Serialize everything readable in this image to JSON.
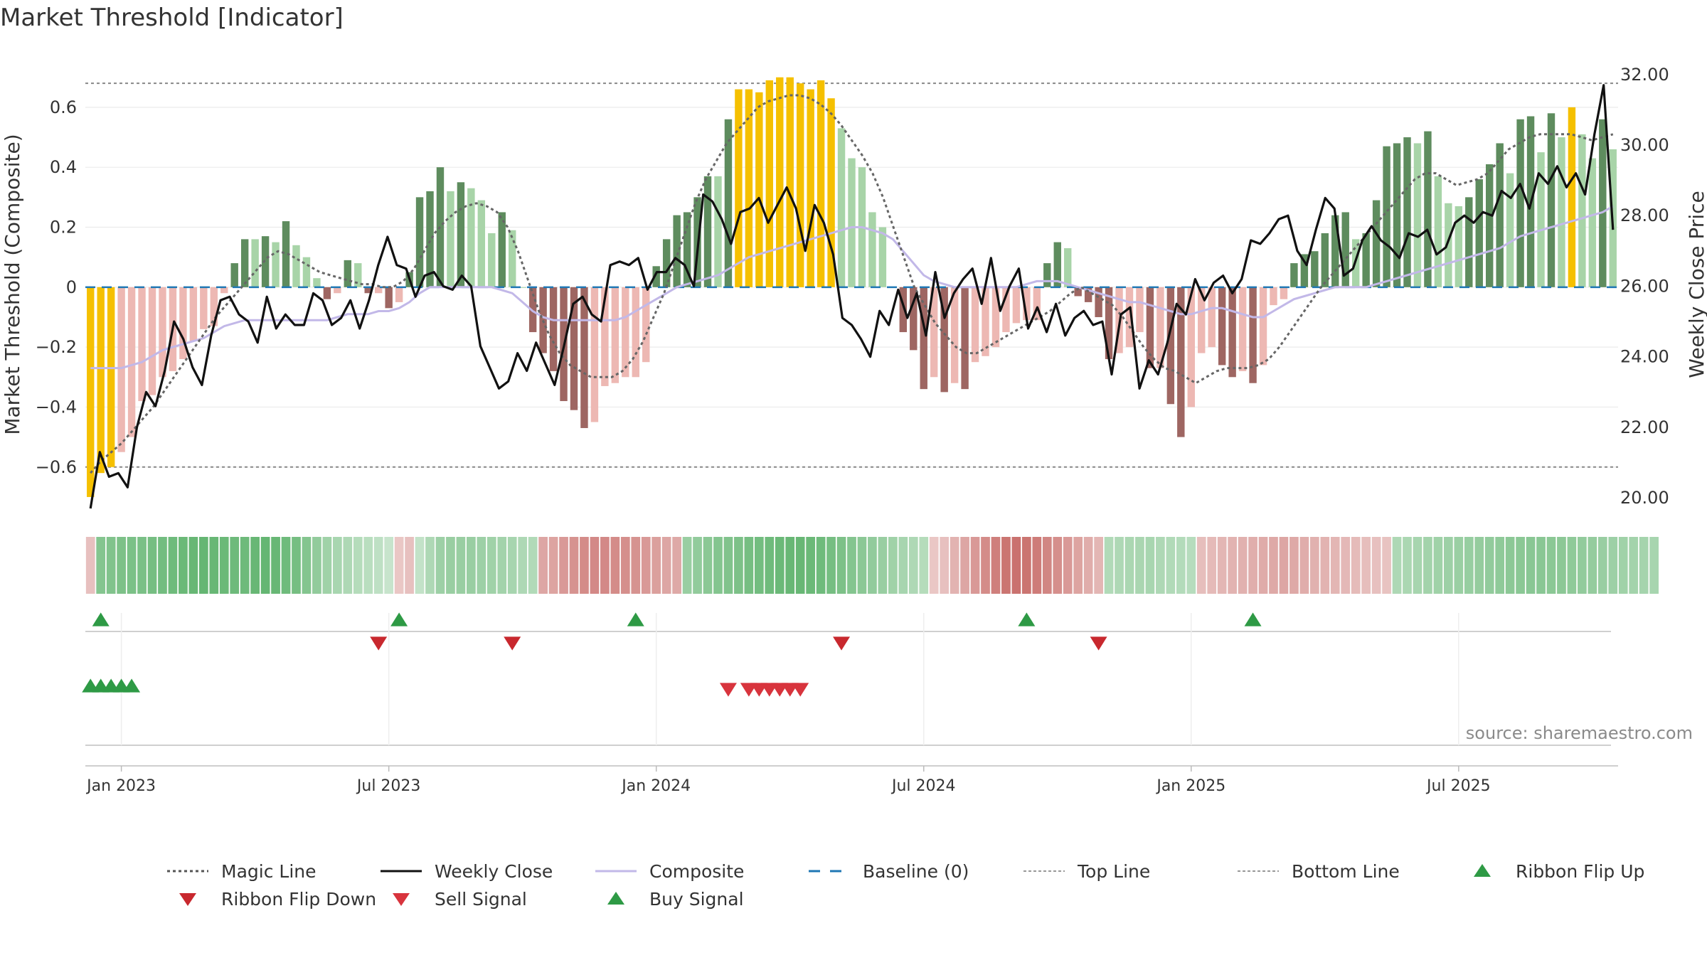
{
  "chart_data": {
    "type": "bar",
    "title": "Market Threshold [Indicator]",
    "ylabel": "Market Threshold (Composite)",
    "y2label": "Weekly Close Price",
    "ylim": [
      -0.75,
      0.78
    ],
    "y2lim": [
      19.6,
      32.6
    ],
    "yticks": [
      {
        "v": 0.6,
        "label": "0.6"
      },
      {
        "v": 0.4,
        "label": "0.4"
      },
      {
        "v": 0.2,
        "label": "0.2"
      },
      {
        "v": 0,
        "label": "0"
      },
      {
        "v": -0.2,
        "label": "−0.2"
      },
      {
        "v": -0.4,
        "label": "−0.4"
      },
      {
        "v": -0.6,
        "label": "−0.6"
      }
    ],
    "y2ticks": [
      {
        "v": 32,
        "label": "32.00"
      },
      {
        "v": 30,
        "label": "30.00"
      },
      {
        "v": 28,
        "label": "28.00"
      },
      {
        "v": 26,
        "label": "26.00"
      },
      {
        "v": 24,
        "label": "24.00"
      },
      {
        "v": 22,
        "label": "22.00"
      },
      {
        "v": 20,
        "label": "20.00"
      }
    ],
    "xticks": [
      {
        "week": 3,
        "label": "Jan 2023"
      },
      {
        "week": 29,
        "label": "Jul 2023"
      },
      {
        "week": 55,
        "label": "Jan 2024"
      },
      {
        "week": 81,
        "label": "Jul 2024"
      },
      {
        "week": 107,
        "label": "Jan 2025"
      },
      {
        "week": 133,
        "label": "Jul 2025"
      }
    ],
    "top_line": 0.68,
    "bottom_line": -0.6,
    "baseline": 0,
    "source_note": "source: sharemaestro.com",
    "colors": {
      "extreme_bar": "#F5C000",
      "strong_up": "#5E8C5E",
      "weak_up": "#A8D4A8",
      "strong_down": "#9E6662",
      "weak_down": "#EDB8B3",
      "magic_line": "#666666",
      "weekly_close": "#111111",
      "composite": "#C2B8E8",
      "baseline": "#1F77B4",
      "threshold_lines": "#888888",
      "buy": "#2E9A45",
      "sell": "#D8343D"
    },
    "series": [
      {
        "name": "Composite Bars",
        "values": [
          -0.7,
          -0.62,
          -0.6,
          -0.55,
          -0.5,
          -0.38,
          -0.36,
          -0.3,
          -0.28,
          -0.24,
          -0.18,
          -0.14,
          -0.13,
          -0.02,
          0.08,
          0.16,
          0.16,
          0.17,
          0.15,
          0.22,
          0.14,
          0.1,
          0.03,
          -0.04,
          -0.02,
          0.09,
          0.08,
          -0.02,
          -0.02,
          -0.07,
          -0.05,
          0.05,
          0.3,
          0.32,
          0.4,
          0.32,
          0.35,
          0.33,
          0.29,
          0.18,
          0.25,
          0.19,
          0.0,
          -0.15,
          -0.22,
          -0.28,
          -0.38,
          -0.41,
          -0.47,
          -0.45,
          -0.33,
          -0.32,
          -0.3,
          -0.3,
          -0.25,
          0.07,
          0.16,
          0.24,
          0.25,
          0.3,
          0.37,
          0.37,
          0.56,
          0.66,
          0.66,
          0.65,
          0.69,
          0.7,
          0.7,
          0.68,
          0.66,
          0.69,
          0.63,
          0.53,
          0.43,
          0.4,
          0.25,
          0.2,
          0.0,
          -0.15,
          -0.21,
          -0.34,
          -0.3,
          -0.35,
          -0.32,
          -0.34,
          -0.25,
          -0.23,
          -0.2,
          -0.15,
          -0.12,
          -0.11,
          -0.11,
          0.08,
          0.15,
          0.13,
          -0.03,
          -0.05,
          -0.1,
          -0.24,
          -0.22,
          -0.2,
          -0.15,
          -0.27,
          -0.27,
          -0.39,
          -0.5,
          -0.4,
          -0.22,
          -0.2,
          -0.26,
          -0.3,
          -0.28,
          -0.32,
          -0.26,
          -0.06,
          -0.04,
          0.08,
          0.11,
          0.12,
          0.18,
          0.24,
          0.25,
          0.16,
          0.18,
          0.29,
          0.47,
          0.48,
          0.5,
          0.48,
          0.52,
          0.37,
          0.28,
          0.27,
          0.3,
          0.36,
          0.41,
          0.48,
          0.38,
          0.56,
          0.57,
          0.45,
          0.58,
          0.5,
          0.6,
          0.51,
          0.43,
          0.56,
          0.46
        ]
      },
      {
        "name": "Weekly Close",
        "values": [
          19.7,
          21.3,
          20.6,
          20.7,
          20.3,
          22.0,
          23.0,
          22.6,
          23.6,
          25.0,
          24.5,
          23.7,
          23.2,
          24.6,
          25.6,
          25.7,
          25.2,
          25.0,
          24.4,
          25.7,
          24.8,
          25.2,
          24.9,
          24.9,
          25.8,
          25.6,
          24.9,
          25.1,
          25.6,
          24.8,
          25.6,
          26.6,
          27.4,
          26.6,
          26.5,
          25.7,
          26.3,
          26.4,
          26.0,
          25.9,
          26.3,
          26.0,
          24.3,
          23.7,
          23.1,
          23.3,
          24.1,
          23.6,
          24.4,
          23.8,
          23.2,
          24.3,
          25.5,
          25.7,
          25.2,
          25.0,
          26.6,
          26.7,
          26.6,
          26.8,
          25.9,
          26.4,
          26.4,
          26.8,
          26.6,
          26.0,
          28.6,
          28.4,
          27.9,
          27.2,
          28.1,
          28.2,
          28.5,
          27.8,
          28.3,
          28.8,
          28.2,
          27.0,
          28.3,
          27.8,
          26.9,
          25.1,
          24.9,
          24.5,
          24.0,
          25.3,
          24.9,
          25.9,
          25.1,
          25.8,
          24.6,
          26.4,
          25.1,
          25.8,
          26.2,
          26.5,
          25.5,
          26.8,
          25.3,
          26.0,
          26.5,
          24.8,
          25.4,
          24.7,
          25.5,
          24.6,
          25.1,
          25.3,
          24.9,
          25.0,
          23.5,
          25.2,
          25.4,
          23.1,
          23.9,
          23.5,
          24.4,
          25.5,
          25.2,
          26.2,
          25.6,
          26.1,
          26.3,
          25.8,
          26.2,
          27.3,
          27.2,
          27.5,
          27.9,
          28.0,
          27.0,
          26.6,
          27.6,
          28.5,
          28.2,
          26.3,
          26.5,
          27.3,
          27.7,
          27.3,
          27.1,
          26.8,
          27.5,
          27.4,
          27.6,
          26.9,
          27.1,
          27.8,
          28.0,
          27.8,
          28.1,
          28.0,
          28.7,
          28.5,
          28.9,
          28.2,
          29.2,
          28.9,
          29.4,
          28.8,
          29.2,
          28.6,
          30.3,
          31.7,
          27.6
        ]
      },
      {
        "name": "Composite Line",
        "values": [
          -0.27,
          -0.27,
          -0.27,
          -0.27,
          -0.26,
          -0.25,
          -0.23,
          -0.21,
          -0.2,
          -0.19,
          -0.18,
          -0.17,
          -0.15,
          -0.13,
          -0.12,
          -0.11,
          -0.11,
          -0.11,
          -0.11,
          -0.11,
          -0.11,
          -0.11,
          -0.11,
          -0.11,
          -0.1,
          -0.09,
          -0.09,
          -0.09,
          -0.08,
          -0.08,
          -0.07,
          -0.05,
          -0.02,
          0.0,
          0.0,
          0.0,
          0.0,
          0.0,
          0.0,
          0.0,
          -0.01,
          -0.02,
          -0.05,
          -0.08,
          -0.1,
          -0.11,
          -0.11,
          -0.11,
          -0.11,
          -0.11,
          -0.11,
          -0.11,
          -0.1,
          -0.08,
          -0.06,
          -0.04,
          -0.02,
          0.0,
          0.01,
          0.02,
          0.03,
          0.04,
          0.06,
          0.08,
          0.1,
          0.11,
          0.12,
          0.13,
          0.14,
          0.15,
          0.16,
          0.17,
          0.18,
          0.19,
          0.2,
          0.2,
          0.19,
          0.18,
          0.16,
          0.12,
          0.08,
          0.04,
          0.02,
          0.01,
          0.0,
          0.0,
          0.0,
          0.0,
          0.0,
          0.0,
          0.0,
          0.01,
          0.02,
          0.02,
          0.02,
          0.01,
          0.0,
          -0.01,
          -0.02,
          -0.03,
          -0.04,
          -0.05,
          -0.05,
          -0.06,
          -0.07,
          -0.08,
          -0.09,
          -0.09,
          -0.08,
          -0.07,
          -0.07,
          -0.08,
          -0.09,
          -0.1,
          -0.1,
          -0.08,
          -0.06,
          -0.04,
          -0.03,
          -0.02,
          -0.01,
          0.0,
          0.0,
          0.0,
          0.0,
          0.01,
          0.02,
          0.03,
          0.04,
          0.05,
          0.06,
          0.07,
          0.08,
          0.09,
          0.1,
          0.11,
          0.12,
          0.13,
          0.15,
          0.17,
          0.18,
          0.19,
          0.2,
          0.21,
          0.22,
          0.23,
          0.24,
          0.25,
          0.27
        ]
      },
      {
        "name": "Magic Line",
        "values": [
          -0.62,
          -0.58,
          -0.55,
          -0.52,
          -0.48,
          -0.44,
          -0.4,
          -0.35,
          -0.3,
          -0.25,
          -0.2,
          -0.15,
          -0.1,
          -0.06,
          -0.02,
          0.02,
          0.06,
          0.1,
          0.12,
          0.11,
          0.09,
          0.07,
          0.05,
          0.04,
          0.03,
          0.02,
          0.01,
          0.01,
          0.0,
          0.0,
          0.02,
          0.06,
          0.12,
          0.18,
          0.22,
          0.25,
          0.27,
          0.28,
          0.27,
          0.25,
          0.2,
          0.12,
          0.02,
          -0.08,
          -0.16,
          -0.22,
          -0.26,
          -0.28,
          -0.3,
          -0.3,
          -0.3,
          -0.28,
          -0.24,
          -0.18,
          -0.1,
          -0.02,
          0.08,
          0.18,
          0.28,
          0.36,
          0.42,
          0.48,
          0.52,
          0.56,
          0.6,
          0.62,
          0.63,
          0.64,
          0.64,
          0.63,
          0.61,
          0.58,
          0.54,
          0.49,
          0.44,
          0.38,
          0.3,
          0.2,
          0.1,
          0.0,
          -0.06,
          -0.12,
          -0.16,
          -0.2,
          -0.22,
          -0.22,
          -0.2,
          -0.18,
          -0.16,
          -0.14,
          -0.12,
          -0.1,
          -0.08,
          -0.05,
          -0.02,
          0.0,
          -0.02,
          -0.04,
          -0.06,
          -0.1,
          -0.15,
          -0.2,
          -0.24,
          -0.27,
          -0.28,
          -0.3,
          -0.32,
          -0.3,
          -0.28,
          -0.27,
          -0.27,
          -0.27,
          -0.26,
          -0.24,
          -0.2,
          -0.15,
          -0.1,
          -0.05,
          0.0,
          0.04,
          0.08,
          0.12,
          0.16,
          0.2,
          0.24,
          0.28,
          0.32,
          0.36,
          0.38,
          0.38,
          0.36,
          0.34,
          0.35,
          0.36,
          0.38,
          0.42,
          0.46,
          0.48,
          0.5,
          0.51,
          0.51,
          0.51,
          0.51,
          0.5,
          0.49,
          0.5,
          0.51
        ]
      },
      {
        "name": "Ribbon",
        "values": [
          -0.2,
          0.6,
          0.62,
          0.65,
          0.66,
          0.67,
          0.7,
          0.72,
          0.75,
          0.78,
          0.8,
          0.82,
          0.8,
          0.78,
          0.76,
          0.76,
          0.8,
          0.82,
          0.8,
          0.75,
          0.7,
          0.6,
          0.5,
          0.4,
          0.34,
          0.3,
          0.25,
          0.22,
          0.18,
          0.12,
          -0.15,
          -0.2,
          0.15,
          0.3,
          0.42,
          0.45,
          0.45,
          0.45,
          0.42,
          0.4,
          0.38,
          0.35,
          0.3,
          0.28,
          -0.4,
          -0.42,
          -0.5,
          -0.55,
          -0.6,
          -0.62,
          -0.62,
          -0.6,
          -0.58,
          -0.55,
          -0.5,
          -0.45,
          -0.4,
          -0.38,
          0.45,
          0.5,
          0.55,
          0.6,
          0.62,
          0.65,
          0.7,
          0.72,
          0.75,
          0.78,
          0.8,
          0.8,
          0.78,
          0.75,
          0.7,
          0.65,
          0.6,
          0.55,
          0.5,
          0.45,
          0.4,
          0.35,
          0.3,
          0.25,
          -0.15,
          -0.2,
          -0.3,
          -0.4,
          -0.5,
          -0.6,
          -0.7,
          -0.78,
          -0.8,
          -0.78,
          -0.72,
          -0.65,
          -0.58,
          -0.5,
          -0.42,
          -0.35,
          -0.28,
          0.28,
          0.3,
          0.32,
          0.33,
          0.34,
          0.3,
          0.28,
          0.26,
          0.24,
          -0.22,
          -0.25,
          -0.28,
          -0.3,
          -0.32,
          -0.34,
          -0.36,
          -0.38,
          -0.4,
          -0.38,
          -0.35,
          -0.32,
          -0.3,
          -0.28,
          -0.26,
          -0.24,
          -0.22,
          -0.2,
          -0.18,
          0.3,
          0.32,
          0.35,
          0.38,
          0.4,
          0.42,
          0.44,
          0.46,
          0.48,
          0.5,
          0.52,
          0.54,
          0.55,
          0.56,
          0.56,
          0.55,
          0.54,
          0.52,
          0.5,
          0.48,
          0.45,
          0.42,
          0.4,
          0.38,
          0.36,
          0.35
        ]
      }
    ],
    "markers": {
      "ribbon_flip_up": [
        1,
        30,
        53,
        91,
        113
      ],
      "ribbon_flip_down": [
        28,
        41,
        73,
        98
      ],
      "buy_signal": [
        0,
        1,
        2,
        3,
        4
      ],
      "sell_signal": [
        62,
        64,
        65,
        66,
        67,
        68,
        69
      ]
    },
    "legend": {
      "position": "bottom",
      "items": [
        {
          "label": "Magic Line",
          "kind": "dotted",
          "color": "#555555"
        },
        {
          "label": "Weekly Close",
          "kind": "solid",
          "color": "#111111"
        },
        {
          "label": "Composite",
          "kind": "solid",
          "color": "#C2B8E8"
        },
        {
          "label": "Baseline (0)",
          "kind": "dashed",
          "color": "#1F77B4"
        },
        {
          "label": "Top Line",
          "kind": "dotted-thin",
          "color": "#999999"
        },
        {
          "label": "Bottom Line",
          "kind": "dotted-thin",
          "color": "#999999"
        },
        {
          "label": "Ribbon Flip Up",
          "kind": "tri-up",
          "color": "#2E9A45"
        },
        {
          "label": "Ribbon Flip Down",
          "kind": "tri-down",
          "color": "#C8282E"
        },
        {
          "label": "Sell Signal",
          "kind": "tri-down",
          "color": "#D8343D"
        },
        {
          "label": "Buy Signal",
          "kind": "tri-up",
          "color": "#2E9A45"
        }
      ]
    }
  }
}
